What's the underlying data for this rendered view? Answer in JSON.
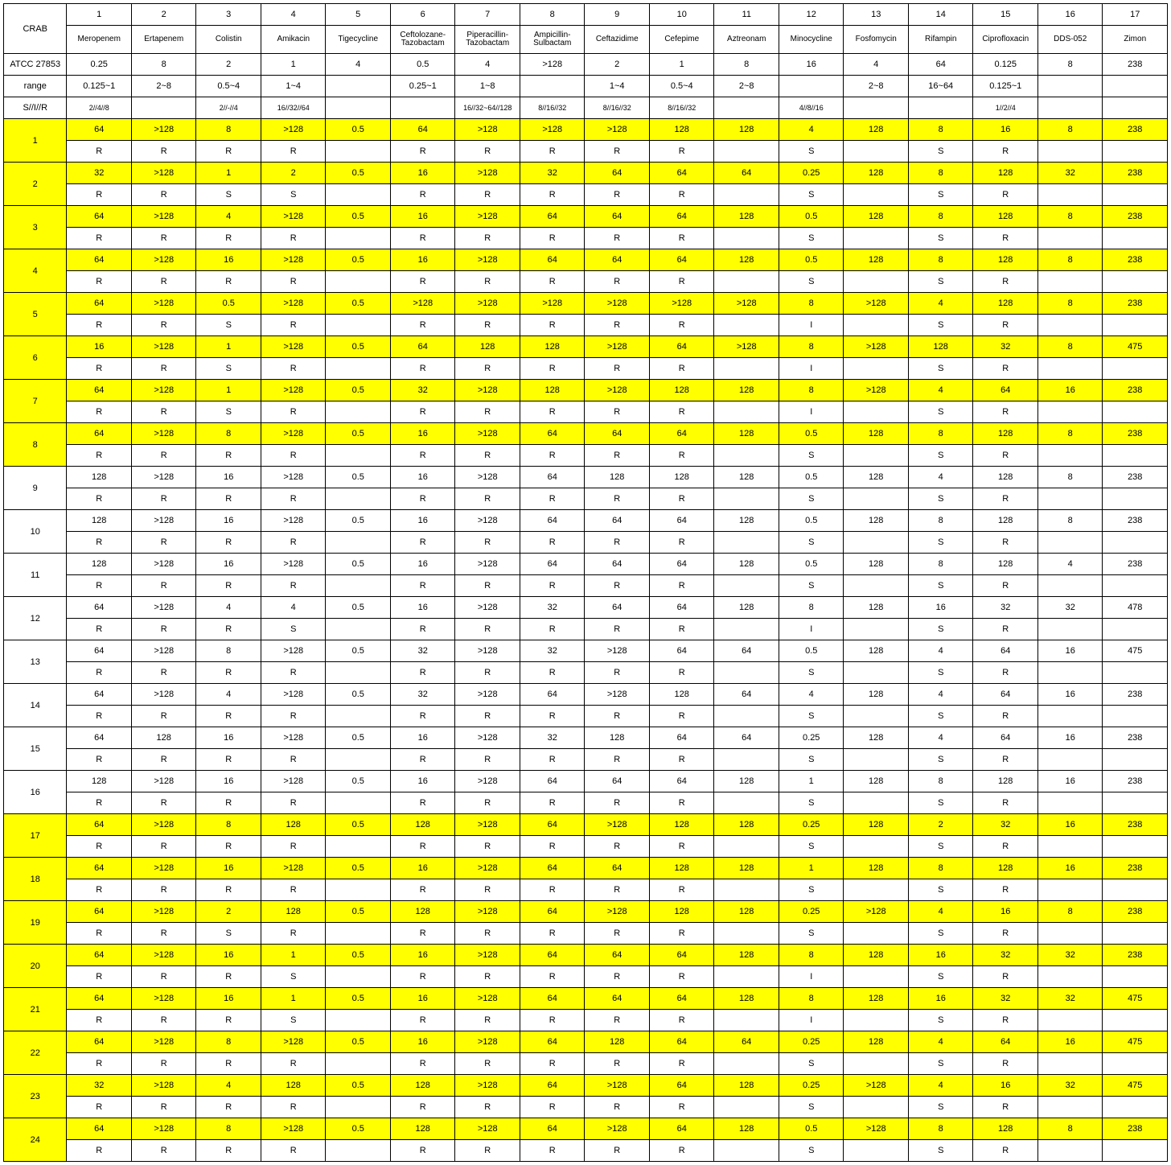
{
  "corner": "CRAB",
  "col_nums": [
    "1",
    "2",
    "3",
    "4",
    "5",
    "6",
    "7",
    "8",
    "9",
    "10",
    "11",
    "12",
    "13",
    "14",
    "15",
    "16",
    "17"
  ],
  "col_names": [
    "Meropenem",
    "Ertapenem",
    "Colistin",
    "Amikacin",
    "Tigecycline",
    "Ceftolozane-Tazobactam",
    "Piperacillin-Tazobactam",
    "Ampicillin-Sulbactam",
    "Ceftazidime",
    "Cefepime",
    "Aztreonam",
    "Minocycline",
    "Fosfomycin",
    "Rifampin",
    "Ciprofloxacin",
    "DDS-052",
    "Zimon"
  ],
  "atcc_label": "ATCC 27853",
  "atcc": [
    "0.25",
    "8",
    "2",
    "1",
    "4",
    "0.5",
    "4",
    ">128",
    "2",
    "1",
    "8",
    "16",
    "4",
    "64",
    "0.125",
    "8",
    "238"
  ],
  "range_label": "range",
  "range": [
    "0.125~1",
    "2~8",
    "0.5~4",
    "1~4",
    "",
    "0.25~1",
    "1~8",
    "",
    "1~4",
    "0.5~4",
    "2~8",
    "",
    "2~8",
    "16~64",
    "0.125~1",
    "",
    ""
  ],
  "sir_label": "S//I//R",
  "sir": [
    "2//4//8",
    "",
    "2//-//4",
    "16//32//64",
    "",
    "",
    "16//32~64//128",
    "8//16//32",
    "8//16//32",
    "8//16//32",
    "",
    "4//8//16",
    "",
    "",
    "1//2//4",
    "",
    ""
  ],
  "highlight_rows": [
    1,
    2,
    3,
    4,
    5,
    6,
    7,
    8,
    17,
    18,
    19,
    20,
    21,
    22,
    23,
    24
  ],
  "rows": [
    {
      "n": "1",
      "v": [
        "64",
        ">128",
        "8",
        ">128",
        "0.5",
        "64",
        ">128",
        ">128",
        ">128",
        "128",
        "128",
        "4",
        "128",
        "8",
        "16",
        "8",
        "238"
      ],
      "s": [
        "R",
        "R",
        "R",
        "R",
        "",
        "R",
        "R",
        "R",
        "R",
        "R",
        "",
        "S",
        "",
        "S",
        "R",
        "",
        ""
      ]
    },
    {
      "n": "2",
      "v": [
        "32",
        ">128",
        "1",
        "2",
        "0.5",
        "16",
        ">128",
        "32",
        "64",
        "64",
        "64",
        "0.25",
        "128",
        "8",
        "128",
        "32",
        "238"
      ],
      "s": [
        "R",
        "R",
        "S",
        "S",
        "",
        "R",
        "R",
        "R",
        "R",
        "R",
        "",
        "S",
        "",
        "S",
        "R",
        "",
        ""
      ]
    },
    {
      "n": "3",
      "v": [
        "64",
        ">128",
        "4",
        ">128",
        "0.5",
        "16",
        ">128",
        "64",
        "64",
        "64",
        "128",
        "0.5",
        "128",
        "8",
        "128",
        "8",
        "238"
      ],
      "s": [
        "R",
        "R",
        "R",
        "R",
        "",
        "R",
        "R",
        "R",
        "R",
        "R",
        "",
        "S",
        "",
        "S",
        "R",
        "",
        ""
      ]
    },
    {
      "n": "4",
      "v": [
        "64",
        ">128",
        "16",
        ">128",
        "0.5",
        "16",
        ">128",
        "64",
        "64",
        "64",
        "128",
        "0.5",
        "128",
        "8",
        "128",
        "8",
        "238"
      ],
      "s": [
        "R",
        "R",
        "R",
        "R",
        "",
        "R",
        "R",
        "R",
        "R",
        "R",
        "",
        "S",
        "",
        "S",
        "R",
        "",
        ""
      ]
    },
    {
      "n": "5",
      "v": [
        "64",
        ">128",
        "0.5",
        ">128",
        "0.5",
        ">128",
        ">128",
        ">128",
        ">128",
        ">128",
        ">128",
        "8",
        ">128",
        "4",
        "128",
        "8",
        "238"
      ],
      "s": [
        "R",
        "R",
        "S",
        "R",
        "",
        "R",
        "R",
        "R",
        "R",
        "R",
        "",
        "I",
        "",
        "S",
        "R",
        "",
        ""
      ]
    },
    {
      "n": "6",
      "v": [
        "16",
        ">128",
        "1",
        ">128",
        "0.5",
        "64",
        "128",
        "128",
        ">128",
        "64",
        ">128",
        "8",
        ">128",
        "128",
        "32",
        "8",
        "475"
      ],
      "s": [
        "R",
        "R",
        "S",
        "R",
        "",
        "R",
        "R",
        "R",
        "R",
        "R",
        "",
        "I",
        "",
        "S",
        "R",
        "",
        ""
      ]
    },
    {
      "n": "7",
      "v": [
        "64",
        ">128",
        "1",
        ">128",
        "0.5",
        "32",
        ">128",
        "128",
        ">128",
        "128",
        "128",
        "8",
        ">128",
        "4",
        "64",
        "16",
        "238"
      ],
      "s": [
        "R",
        "R",
        "S",
        "R",
        "",
        "R",
        "R",
        "R",
        "R",
        "R",
        "",
        "I",
        "",
        "S",
        "R",
        "",
        ""
      ]
    },
    {
      "n": "8",
      "v": [
        "64",
        ">128",
        "8",
        ">128",
        "0.5",
        "16",
        ">128",
        "64",
        "64",
        "64",
        "128",
        "0.5",
        "128",
        "8",
        "128",
        "8",
        "238"
      ],
      "s": [
        "R",
        "R",
        "R",
        "R",
        "",
        "R",
        "R",
        "R",
        "R",
        "R",
        "",
        "S",
        "",
        "S",
        "R",
        "",
        ""
      ]
    },
    {
      "n": "9",
      "v": [
        "128",
        ">128",
        "16",
        ">128",
        "0.5",
        "16",
        ">128",
        "64",
        "128",
        "128",
        "128",
        "0.5",
        "128",
        "4",
        "128",
        "8",
        "238"
      ],
      "s": [
        "R",
        "R",
        "R",
        "R",
        "",
        "R",
        "R",
        "R",
        "R",
        "R",
        "",
        "S",
        "",
        "S",
        "R",
        "",
        ""
      ]
    },
    {
      "n": "10",
      "v": [
        "128",
        ">128",
        "16",
        ">128",
        "0.5",
        "16",
        ">128",
        "64",
        "64",
        "64",
        "128",
        "0.5",
        "128",
        "8",
        "128",
        "8",
        "238"
      ],
      "s": [
        "R",
        "R",
        "R",
        "R",
        "",
        "R",
        "R",
        "R",
        "R",
        "R",
        "",
        "S",
        "",
        "S",
        "R",
        "",
        ""
      ]
    },
    {
      "n": "11",
      "v": [
        "128",
        ">128",
        "16",
        ">128",
        "0.5",
        "16",
        ">128",
        "64",
        "64",
        "64",
        "128",
        "0.5",
        "128",
        "8",
        "128",
        "4",
        "238"
      ],
      "s": [
        "R",
        "R",
        "R",
        "R",
        "",
        "R",
        "R",
        "R",
        "R",
        "R",
        "",
        "S",
        "",
        "S",
        "R",
        "",
        ""
      ]
    },
    {
      "n": "12",
      "v": [
        "64",
        ">128",
        "4",
        "4",
        "0.5",
        "16",
        ">128",
        "32",
        "64",
        "64",
        "128",
        "8",
        "128",
        "16",
        "32",
        "32",
        "478"
      ],
      "s": [
        "R",
        "R",
        "R",
        "S",
        "",
        "R",
        "R",
        "R",
        "R",
        "R",
        "",
        "I",
        "",
        "S",
        "R",
        "",
        ""
      ]
    },
    {
      "n": "13",
      "v": [
        "64",
        ">128",
        "8",
        ">128",
        "0.5",
        "32",
        ">128",
        "32",
        ">128",
        "64",
        "64",
        "0.5",
        "128",
        "4",
        "64",
        "16",
        "475"
      ],
      "s": [
        "R",
        "R",
        "R",
        "R",
        "",
        "R",
        "R",
        "R",
        "R",
        "R",
        "",
        "S",
        "",
        "S",
        "R",
        "",
        ""
      ]
    },
    {
      "n": "14",
      "v": [
        "64",
        ">128",
        "4",
        ">128",
        "0.5",
        "32",
        ">128",
        "64",
        ">128",
        "128",
        "64",
        "4",
        "128",
        "4",
        "64",
        "16",
        "238"
      ],
      "s": [
        "R",
        "R",
        "R",
        "R",
        "",
        "R",
        "R",
        "R",
        "R",
        "R",
        "",
        "S",
        "",
        "S",
        "R",
        "",
        ""
      ]
    },
    {
      "n": "15",
      "v": [
        "64",
        "128",
        "16",
        ">128",
        "0.5",
        "16",
        ">128",
        "32",
        "128",
        "64",
        "64",
        "0.25",
        "128",
        "4",
        "64",
        "16",
        "238"
      ],
      "s": [
        "R",
        "R",
        "R",
        "R",
        "",
        "R",
        "R",
        "R",
        "R",
        "R",
        "",
        "S",
        "",
        "S",
        "R",
        "",
        ""
      ]
    },
    {
      "n": "16",
      "v": [
        "128",
        ">128",
        "16",
        ">128",
        "0.5",
        "16",
        ">128",
        "64",
        "64",
        "64",
        "128",
        "1",
        "128",
        "8",
        "128",
        "16",
        "238"
      ],
      "s": [
        "R",
        "R",
        "R",
        "R",
        "",
        "R",
        "R",
        "R",
        "R",
        "R",
        "",
        "S",
        "",
        "S",
        "R",
        "",
        ""
      ]
    },
    {
      "n": "17",
      "v": [
        "64",
        ">128",
        "8",
        "128",
        "0.5",
        "128",
        ">128",
        "64",
        ">128",
        "128",
        "128",
        "0.25",
        "128",
        "2",
        "32",
        "16",
        "238"
      ],
      "s": [
        "R",
        "R",
        "R",
        "R",
        "",
        "R",
        "R",
        "R",
        "R",
        "R",
        "",
        "S",
        "",
        "S",
        "R",
        "",
        ""
      ]
    },
    {
      "n": "18",
      "v": [
        "64",
        ">128",
        "16",
        ">128",
        "0.5",
        "16",
        ">128",
        "64",
        "64",
        "128",
        "128",
        "1",
        "128",
        "8",
        "128",
        "16",
        "238"
      ],
      "s": [
        "R",
        "R",
        "R",
        "R",
        "",
        "R",
        "R",
        "R",
        "R",
        "R",
        "",
        "S",
        "",
        "S",
        "R",
        "",
        ""
      ]
    },
    {
      "n": "19",
      "v": [
        "64",
        ">128",
        "2",
        "128",
        "0.5",
        "128",
        ">128",
        "64",
        ">128",
        "128",
        "128",
        "0.25",
        ">128",
        "4",
        "16",
        "8",
        "238"
      ],
      "s": [
        "R",
        "R",
        "S",
        "R",
        "",
        "R",
        "R",
        "R",
        "R",
        "R",
        "",
        "S",
        "",
        "S",
        "R",
        "",
        ""
      ]
    },
    {
      "n": "20",
      "v": [
        "64",
        ">128",
        "16",
        "1",
        "0.5",
        "16",
        ">128",
        "64",
        "64",
        "64",
        "128",
        "8",
        "128",
        "16",
        "32",
        "32",
        "238"
      ],
      "s": [
        "R",
        "R",
        "R",
        "S",
        "",
        "R",
        "R",
        "R",
        "R",
        "R",
        "",
        "I",
        "",
        "S",
        "R",
        "",
        ""
      ]
    },
    {
      "n": "21",
      "v": [
        "64",
        ">128",
        "16",
        "1",
        "0.5",
        "16",
        ">128",
        "64",
        "64",
        "64",
        "128",
        "8",
        "128",
        "16",
        "32",
        "32",
        "475"
      ],
      "s": [
        "R",
        "R",
        "R",
        "S",
        "",
        "R",
        "R",
        "R",
        "R",
        "R",
        "",
        "I",
        "",
        "S",
        "R",
        "",
        ""
      ]
    },
    {
      "n": "22",
      "v": [
        "64",
        ">128",
        "8",
        ">128",
        "0.5",
        "16",
        ">128",
        "64",
        "128",
        "64",
        "64",
        "0.25",
        "128",
        "4",
        "64",
        "16",
        "475"
      ],
      "s": [
        "R",
        "R",
        "R",
        "R",
        "",
        "R",
        "R",
        "R",
        "R",
        "R",
        "",
        "S",
        "",
        "S",
        "R",
        "",
        ""
      ]
    },
    {
      "n": "23",
      "v": [
        "32",
        ">128",
        "4",
        "128",
        "0.5",
        "128",
        ">128",
        "64",
        ">128",
        "64",
        "128",
        "0.25",
        ">128",
        "4",
        "16",
        "32",
        "475"
      ],
      "s": [
        "R",
        "R",
        "R",
        "R",
        "",
        "R",
        "R",
        "R",
        "R",
        "R",
        "",
        "S",
        "",
        "S",
        "R",
        "",
        ""
      ]
    },
    {
      "n": "24",
      "v": [
        "64",
        ">128",
        "8",
        ">128",
        "0.5",
        "128",
        ">128",
        "64",
        ">128",
        "64",
        "128",
        "0.5",
        ">128",
        "8",
        "128",
        "8",
        "238"
      ],
      "s": [
        "R",
        "R",
        "R",
        "R",
        "",
        "R",
        "R",
        "R",
        "R",
        "R",
        "",
        "S",
        "",
        "S",
        "R",
        "",
        ""
      ]
    }
  ]
}
